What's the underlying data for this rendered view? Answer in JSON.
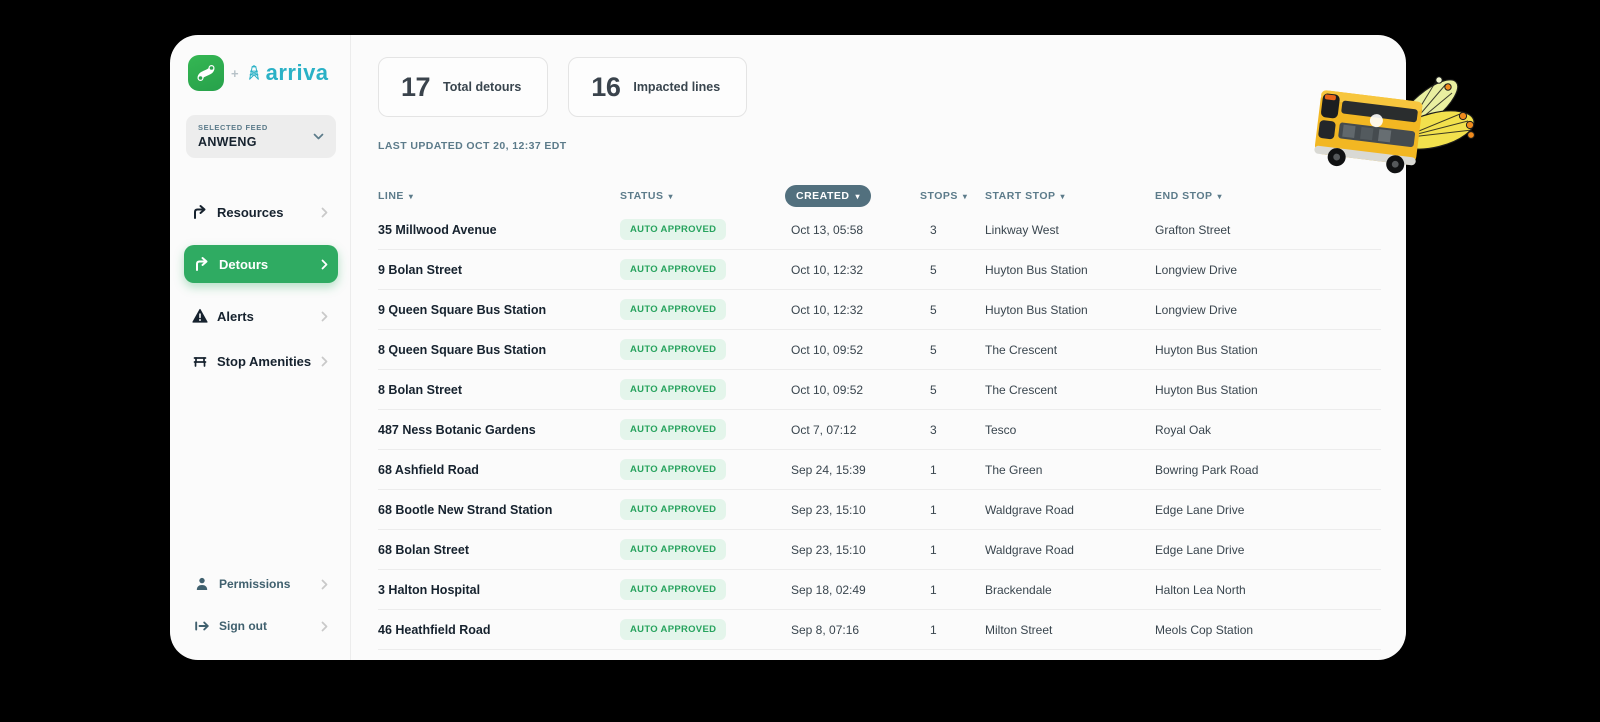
{
  "brand": {
    "logo": "optibus-mark",
    "plus": "+",
    "partner": "arriva",
    "accent_green": "#2fab62",
    "partner_teal": "#2ab1c6"
  },
  "sidebar": {
    "feed": {
      "label": "SELECTED FEED",
      "value": "ANWENG"
    },
    "nav": [
      {
        "label": "Resources",
        "icon": "branch-arrow-icon",
        "active": false
      },
      {
        "label": "Detours",
        "icon": "branch-arrow-icon",
        "active": true
      },
      {
        "label": "Alerts",
        "icon": "warning-triangle-icon",
        "active": false
      },
      {
        "label": "Stop Amenities",
        "icon": "bench-icon",
        "active": false
      }
    ],
    "footer_nav": [
      {
        "label": "Permissions",
        "icon": "person-icon"
      },
      {
        "label": "Sign out",
        "icon": "sign-out-icon"
      }
    ]
  },
  "stats": [
    {
      "value": "17",
      "label": "Total detours"
    },
    {
      "value": "16",
      "label": "Impacted lines"
    }
  ],
  "last_updated": "LAST UPDATED OCT 20, 12:37 EDT",
  "table": {
    "columns": [
      "LINE",
      "STATUS",
      "CREATED",
      "STOPS",
      "START STOP",
      "END STOP"
    ],
    "active_sort_column": "CREATED",
    "status_colors": {
      "bg": "#e4f5eb",
      "text": "#27a35e"
    },
    "created_pill_color": "#52707e",
    "rows": [
      {
        "line": "35 Millwood Avenue",
        "status": "AUTO APPROVED",
        "created": "Oct 13, 05:58",
        "stops": "3",
        "start_stop": "Linkway West",
        "end_stop": "Grafton Street"
      },
      {
        "line": "9 Bolan Street",
        "status": "AUTO APPROVED",
        "created": "Oct 10, 12:32",
        "stops": "5",
        "start_stop": "Huyton Bus Station",
        "end_stop": "Longview Drive"
      },
      {
        "line": "9 Queen Square Bus Station",
        "status": "AUTO APPROVED",
        "created": "Oct 10, 12:32",
        "stops": "5",
        "start_stop": "Huyton Bus Station",
        "end_stop": "Longview Drive"
      },
      {
        "line": "8 Queen Square Bus Station",
        "status": "AUTO APPROVED",
        "created": "Oct 10, 09:52",
        "stops": "5",
        "start_stop": "The Crescent",
        "end_stop": "Huyton Bus Station"
      },
      {
        "line": "8 Bolan Street",
        "status": "AUTO APPROVED",
        "created": "Oct 10, 09:52",
        "stops": "5",
        "start_stop": "The Crescent",
        "end_stop": "Huyton Bus Station"
      },
      {
        "line": "487 Ness Botanic Gardens",
        "status": "AUTO APPROVED",
        "created": "Oct 7, 07:12",
        "stops": "3",
        "start_stop": "Tesco",
        "end_stop": "Royal Oak"
      },
      {
        "line": "68 Ashfield Road",
        "status": "AUTO APPROVED",
        "created": "Sep 24, 15:39",
        "stops": "1",
        "start_stop": "The Green",
        "end_stop": "Bowring Park Road"
      },
      {
        "line": "68 Bootle New Strand Station",
        "status": "AUTO APPROVED",
        "created": "Sep 23, 15:10",
        "stops": "1",
        "start_stop": "Waldgrave Road",
        "end_stop": "Edge Lane Drive"
      },
      {
        "line": "68 Bolan Street",
        "status": "AUTO APPROVED",
        "created": "Sep 23, 15:10",
        "stops": "1",
        "start_stop": "Waldgrave Road",
        "end_stop": "Edge Lane Drive"
      },
      {
        "line": "3 Halton Hospital",
        "status": "AUTO APPROVED",
        "created": "Sep 18, 02:49",
        "stops": "1",
        "start_stop": "Brackendale",
        "end_stop": "Halton Lea North"
      },
      {
        "line": "46 Heathfield Road",
        "status": "AUTO APPROVED",
        "created": "Sep 8, 07:16",
        "stops": "1",
        "start_stop": "Milton Street",
        "end_stop": "Meols Cop Station"
      }
    ]
  },
  "icons": {
    "sort_arrow": "▾"
  }
}
